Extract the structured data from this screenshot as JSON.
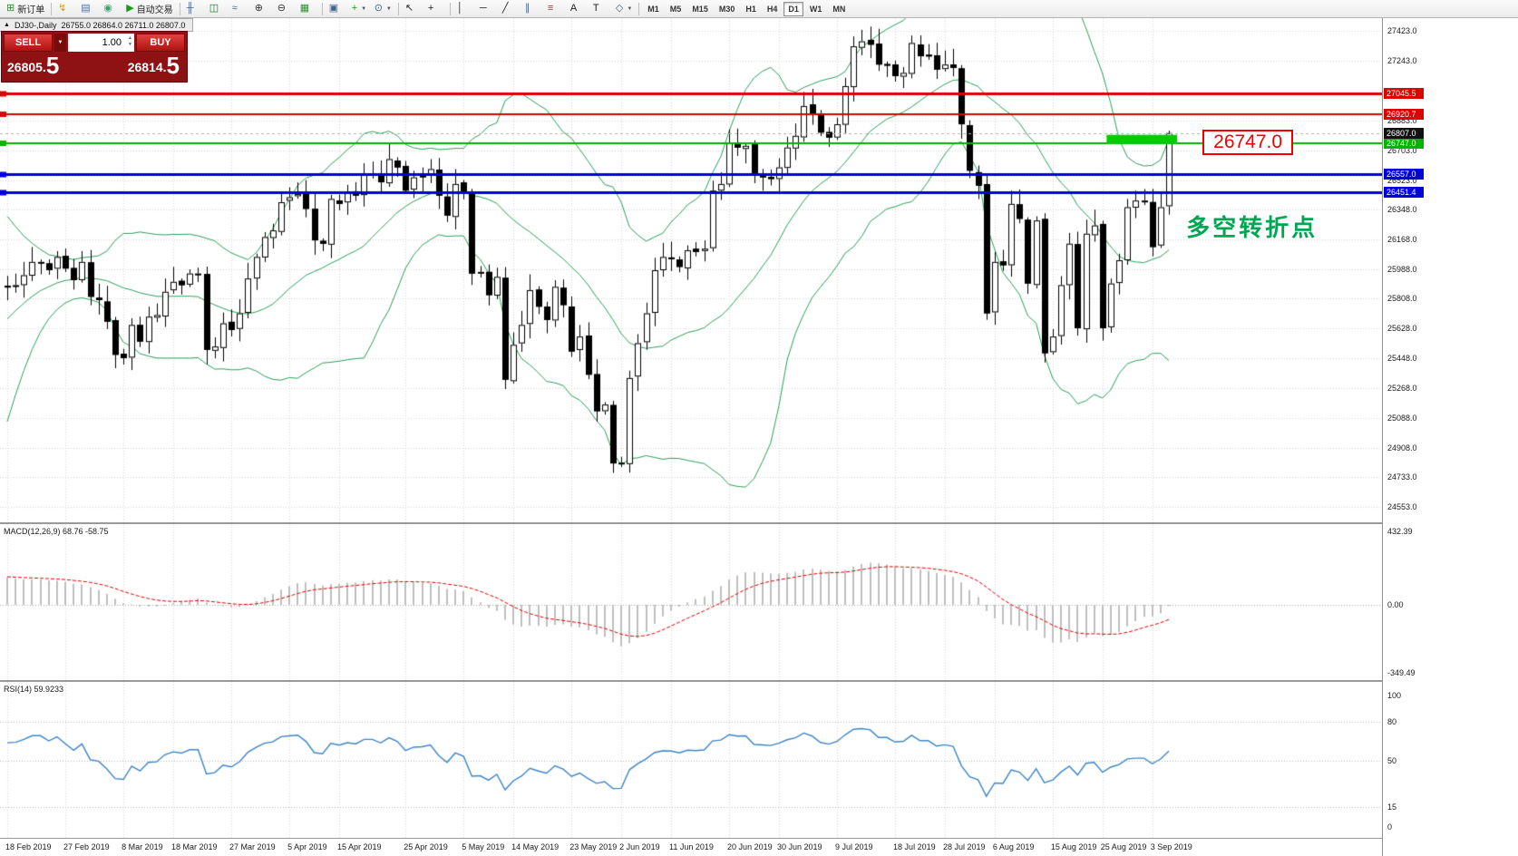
{
  "toolbar": {
    "items": [
      {
        "type": "button",
        "name": "new-order-button",
        "glyph": "⊞",
        "glyph_color": "#2f8f2f",
        "label": "新订单"
      },
      {
        "type": "sep"
      },
      {
        "type": "button",
        "name": "profiles-button",
        "glyph": "↯",
        "glyph_color": "#d99a00"
      },
      {
        "type": "button",
        "name": "market-watch-button",
        "glyph": "▤",
        "glyph_color": "#4a6fa5"
      },
      {
        "type": "button",
        "name": "data-window-button",
        "glyph": "◉",
        "glyph_color": "#3f9f6f"
      },
      {
        "type": "button",
        "name": "auto-trading-button",
        "glyph": "▶",
        "glyph_color": "#12a012",
        "label": "自动交易"
      },
      {
        "type": "sep"
      },
      {
        "type": "button",
        "name": "bar-chart-button",
        "glyph": "╫",
        "glyph_color": "#44618f"
      },
      {
        "type": "button",
        "name": "candlestick-chart-button",
        "glyph": "◫",
        "glyph_color": "#1a7a1a"
      },
      {
        "type": "button",
        "name": "line-chart-button",
        "glyph": "≈",
        "glyph_color": "#44618f"
      },
      {
        "type": "button",
        "name": "zoom-in-button",
        "glyph": "⊕",
        "glyph_color": "#333333"
      },
      {
        "type": "button",
        "name": "zoom-out-button",
        "glyph": "⊖",
        "glyph_color": "#333333"
      },
      {
        "type": "button",
        "name": "grid-button",
        "glyph": "▦",
        "glyph_color": "#2f8f2f"
      },
      {
        "type": "sep"
      },
      {
        "type": "button",
        "name": "tile-windows-button",
        "glyph": "▣",
        "glyph_color": "#44618f"
      },
      {
        "type": "button",
        "name": "add-indicator-button",
        "glyph": "+",
        "glyph_color": "#12a012",
        "caret": true
      },
      {
        "type": "button",
        "name": "period-button",
        "glyph": "⊙",
        "glyph_color": "#44618f",
        "caret": true
      },
      {
        "type": "sep"
      },
      {
        "type": "button",
        "name": "cursor-button",
        "glyph": "↖",
        "glyph_color": "#222222"
      },
      {
        "type": "button",
        "name": "crosshair-button",
        "glyph": "+",
        "glyph_color": "#222222"
      },
      {
        "type": "sep"
      },
      {
        "type": "button",
        "name": "vertical-line-button",
        "glyph": "│",
        "glyph_color": "#222222"
      },
      {
        "type": "button",
        "name": "horizontal-line-button",
        "glyph": "─",
        "glyph_color": "#222222"
      },
      {
        "type": "button",
        "name": "trendline-button",
        "glyph": "╱",
        "glyph_color": "#222222"
      },
      {
        "type": "button",
        "name": "channel-button",
        "glyph": "∥",
        "glyph_color": "#44618f"
      },
      {
        "type": "button",
        "name": "fibonacci-button",
        "glyph": "≡",
        "glyph_color": "#a04040"
      },
      {
        "type": "button",
        "name": "text-button",
        "glyph": "A",
        "glyph_color": "#222222"
      },
      {
        "type": "button",
        "name": "label-button",
        "glyph": "T",
        "glyph_color": "#222222"
      },
      {
        "type": "button",
        "name": "shapes-button",
        "glyph": "◇",
        "glyph_color": "#44618f",
        "caret": true
      },
      {
        "type": "sep"
      },
      {
        "type": "tf",
        "name": "timeframe-m1-button",
        "label": "M1"
      },
      {
        "type": "tf",
        "name": "timeframe-m5-button",
        "label": "M5"
      },
      {
        "type": "tf",
        "name": "timeframe-m15-button",
        "label": "M15"
      },
      {
        "type": "tf",
        "name": "timeframe-m30-button",
        "label": "M30"
      },
      {
        "type": "tf",
        "name": "timeframe-h1-button",
        "label": "H1"
      },
      {
        "type": "tf",
        "name": "timeframe-h4-button",
        "label": "H4"
      },
      {
        "type": "tf",
        "name": "timeframe-d1-button",
        "label": "D1",
        "active": true
      },
      {
        "type": "tf",
        "name": "timeframe-w1-button",
        "label": "W1"
      },
      {
        "type": "tf",
        "name": "timeframe-mn-button",
        "label": "MN"
      }
    ]
  },
  "chart": {
    "title": "DJ30-,Daily",
    "ohlc": "26755.0 26864.0 26711.0 26807.0",
    "annotation": "多空转折点",
    "callout_label": "26747.0",
    "current_price": 26807.0,
    "price_axis_labels": [
      27423.0,
      27243.0,
      26883.0,
      26703.0,
      26523.0,
      26348.0,
      26168.0,
      25988.0,
      25808.0,
      25628.0,
      25448.0,
      25268.0,
      25088.0,
      24908.0,
      24733.0,
      24553.0
    ],
    "levels": [
      {
        "value": 27045.5,
        "color": "#dd0000",
        "width": 3
      },
      {
        "value": 26920.7,
        "color": "#dd0000",
        "width": 2
      },
      {
        "value": 26747.0,
        "color": "#00b400",
        "width": 2
      },
      {
        "value": 26557.0,
        "color": "#0000dd",
        "width": 3
      },
      {
        "value": 26451.4,
        "color": "#0000dd",
        "width": 3
      }
    ]
  },
  "trade_panel": {
    "sell_label": "SELL",
    "buy_label": "BUY",
    "volume": "1.00",
    "sell_price": "26805.5",
    "buy_price": "26814.5"
  },
  "macd": {
    "label": "MACD(12,26,9) 68.76 -58.75",
    "axis_values": [
      "432.39",
      "0.00",
      "-349.49"
    ]
  },
  "rsi": {
    "label": "RSI(14) 59.9233",
    "axis_values": [
      100,
      80,
      50,
      15,
      0
    ]
  },
  "icons": {
    "collapse": "▲",
    "caret_down": "▼",
    "spin_up": "▲",
    "spin_down": "▼"
  },
  "chart_data": {
    "type": "candlestick",
    "symbol": "DJ30-",
    "timeframe": "Daily",
    "price_range": [
      24460,
      27500
    ],
    "pre_closes": [
      25050,
      25100,
      25000,
      25080,
      25150,
      25100,
      25180,
      25250,
      24450,
      24600,
      24750,
      24900,
      25050,
      25200,
      25350,
      25500,
      25600,
      25700,
      25780,
      25840,
      25880,
      25900,
      25870,
      25900,
      25880,
      25910,
      25890,
      25920,
      25900,
      25880
    ],
    "closes": [
      25880,
      25890,
      25950,
      26030,
      26030,
      25980,
      26060,
      25990,
      25920,
      26030,
      25820,
      25800,
      25670,
      25470,
      25450,
      25650,
      25550,
      25700,
      25710,
      25850,
      25910,
      25890,
      25960,
      25960,
      25500,
      25520,
      25660,
      25620,
      25720,
      25930,
      26060,
      26180,
      26220,
      26390,
      26420,
      26440,
      26350,
      26160,
      26140,
      26410,
      26380,
      26450,
      26430,
      26560,
      26560,
      26510,
      26650,
      26600,
      26460,
      26540,
      26550,
      26590,
      26430,
      26310,
      26500,
      26440,
      25960,
      25970,
      25830,
      25940,
      25320,
      25530,
      25650,
      25860,
      25760,
      25680,
      25880,
      25770,
      25490,
      25580,
      25350,
      25130,
      25170,
      24815,
      24820,
      25330,
      25540,
      25720,
      25980,
      26060,
      26050,
      26000,
      26100,
      26090,
      26110,
      26460,
      26500,
      26750,
      26720,
      26730,
      26550,
      26540,
      26530,
      26600,
      26720,
      26790,
      26970,
      26920,
      26810,
      26780,
      26860,
      27090,
      27330,
      27360,
      27340,
      27220,
      27220,
      27150,
      27170,
      27350,
      27270,
      27270,
      27190,
      27220,
      27200,
      26860,
      26580,
      26490,
      25720,
      26030,
      26010,
      26380,
      26290,
      25900,
      26280,
      25480,
      25580,
      25890,
      26140,
      25630,
      26200,
      26250,
      25630,
      25900,
      26040,
      26360,
      26400,
      26400,
      26120,
      26360,
      26807
    ],
    "date_ticks": [
      {
        "label": "18 Feb 2019",
        "index": 0
      },
      {
        "label": "27 Feb 2019",
        "index": 7
      },
      {
        "label": "8 Mar 2019",
        "index": 14
      },
      {
        "label": "18 Mar 2019",
        "index": 20
      },
      {
        "label": "27 Mar 2019",
        "index": 27
      },
      {
        "label": "5 Apr 2019",
        "index": 34
      },
      {
        "label": "15 Apr 2019",
        "index": 40
      },
      {
        "label": "25 Apr 2019",
        "index": 48
      },
      {
        "label": "5 May 2019",
        "index": 55
      },
      {
        "label": "14 May 2019",
        "index": 61
      },
      {
        "label": "23 May 2019",
        "index": 68
      },
      {
        "label": "2 Jun 2019",
        "index": 74
      },
      {
        "label": "11 Jun 2019",
        "index": 80
      },
      {
        "label": "20 Jun 2019",
        "index": 87
      },
      {
        "label": "30 Jun 2019",
        "index": 93
      },
      {
        "label": "9 Jul 2019",
        "index": 100
      },
      {
        "label": "18 Jul 2019",
        "index": 107
      },
      {
        "label": "28 Jul 2019",
        "index": 113
      },
      {
        "label": "6 Aug 2019",
        "index": 119
      },
      {
        "label": "15 Aug 2019",
        "index": 126
      },
      {
        "label": "25 Aug 2019",
        "index": 132
      },
      {
        "label": "3 Sep 2019",
        "index": 138
      }
    ],
    "indicators": {
      "bollinger": {
        "period": 20,
        "deviation": 2,
        "color": "#2ca05a"
      },
      "macd": {
        "fast": 12,
        "slow": 26,
        "signal_period": 9,
        "histogram_color": "#bfbfbf",
        "signal_color": "#e00000",
        "scale": [
          -560,
          600
        ]
      },
      "rsi": {
        "period": 14,
        "color": "#3d85c8",
        "levels": [
          80,
          50,
          15
        ],
        "scale": [
          -8,
          110
        ]
      }
    },
    "highlight_rect": {
      "price": 26747.0,
      "color": "#00cc00",
      "from_index": 132.5,
      "to_index": 141
    }
  }
}
